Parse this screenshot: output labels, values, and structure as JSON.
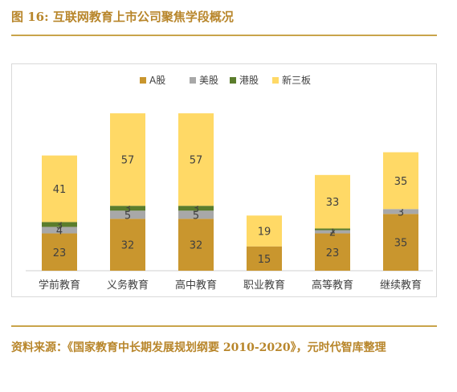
{
  "figure_title": "图 16:  互联网教育上市公司聚焦学段概况",
  "source_note": "资料来源：《国家教育中长期发展规划纲要 2010-2020》，元时代智库整理",
  "colors": {
    "accent_gold": "#b8862b",
    "rule": "#c9a44a"
  },
  "chart_data": {
    "type": "bar",
    "stacked": true,
    "title": "",
    "xlabel": "",
    "ylabel": "",
    "ylim": [
      0,
      100
    ],
    "grid": false,
    "legend_position": "top",
    "categories": [
      "学前教育",
      "义务教育",
      "高中教育",
      "职业教育",
      "高等教育",
      "继续教育"
    ],
    "series": [
      {
        "name": "A股",
        "color": "#c9962e",
        "values": [
          23,
          32,
          32,
          15,
          23,
          35
        ]
      },
      {
        "name": "美股",
        "color": "#a8a8a8",
        "values": [
          4,
          5,
          5,
          0,
          2,
          3
        ]
      },
      {
        "name": "港股",
        "color": "#5b7d2c",
        "values": [
          3,
          3,
          3,
          0,
          1,
          0
        ]
      },
      {
        "name": "新三板",
        "color": "#ffd966",
        "values": [
          41,
          57,
          57,
          19,
          33,
          35
        ]
      }
    ]
  }
}
